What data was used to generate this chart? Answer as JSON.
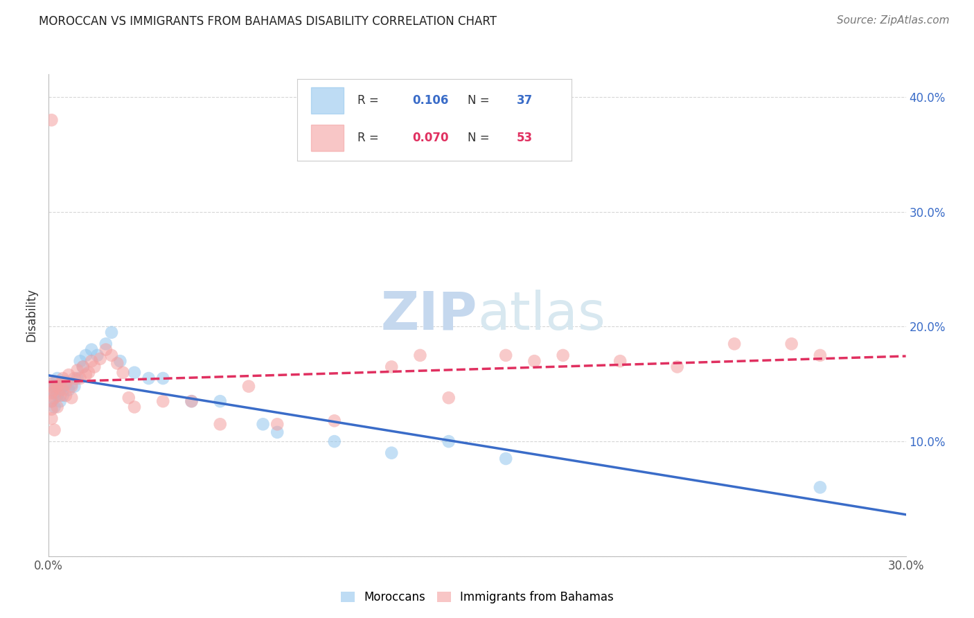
{
  "title": "MOROCCAN VS IMMIGRANTS FROM BAHAMAS DISABILITY CORRELATION CHART",
  "source": "Source: ZipAtlas.com",
  "ylabel": "Disability",
  "x_min": 0.0,
  "x_max": 0.3,
  "y_min": 0.0,
  "y_max": 0.42,
  "moroccans_color": "#93C6ED",
  "bahamas_color": "#F4A0A0",
  "trendline_moroccan_color": "#3A6CC8",
  "trendline_bahamas_color": "#E03060",
  "watermark_zip_color": "#C5D8EE",
  "watermark_atlas_color": "#C5D8EE",
  "moroccans_x": [
    0.001,
    0.001,
    0.001,
    0.002,
    0.002,
    0.002,
    0.003,
    0.003,
    0.004,
    0.004,
    0.005,
    0.005,
    0.006,
    0.007,
    0.008,
    0.009,
    0.01,
    0.011,
    0.012,
    0.013,
    0.015,
    0.017,
    0.02,
    0.022,
    0.025,
    0.03,
    0.035,
    0.04,
    0.05,
    0.06,
    0.075,
    0.08,
    0.1,
    0.12,
    0.14,
    0.16,
    0.27
  ],
  "moroccans_y": [
    0.15,
    0.145,
    0.135,
    0.148,
    0.142,
    0.13,
    0.14,
    0.155,
    0.145,
    0.135,
    0.148,
    0.14,
    0.152,
    0.145,
    0.15,
    0.148,
    0.155,
    0.17,
    0.165,
    0.175,
    0.18,
    0.175,
    0.185,
    0.195,
    0.17,
    0.16,
    0.155,
    0.155,
    0.135,
    0.135,
    0.115,
    0.108,
    0.1,
    0.09,
    0.1,
    0.085,
    0.06
  ],
  "bahamas_x": [
    0.001,
    0.001,
    0.001,
    0.001,
    0.001,
    0.002,
    0.002,
    0.002,
    0.002,
    0.003,
    0.003,
    0.004,
    0.004,
    0.005,
    0.005,
    0.006,
    0.006,
    0.007,
    0.008,
    0.008,
    0.009,
    0.01,
    0.011,
    0.012,
    0.013,
    0.014,
    0.015,
    0.016,
    0.018,
    0.02,
    0.022,
    0.024,
    0.026,
    0.028,
    0.03,
    0.04,
    0.05,
    0.06,
    0.07,
    0.08,
    0.1,
    0.12,
    0.13,
    0.14,
    0.16,
    0.17,
    0.18,
    0.2,
    0.22,
    0.24,
    0.26,
    0.27,
    0.001
  ],
  "bahamas_y": [
    0.148,
    0.142,
    0.135,
    0.128,
    0.12,
    0.152,
    0.145,
    0.138,
    0.11,
    0.148,
    0.13,
    0.15,
    0.14,
    0.155,
    0.145,
    0.15,
    0.14,
    0.158,
    0.148,
    0.138,
    0.155,
    0.162,
    0.155,
    0.165,
    0.158,
    0.16,
    0.17,
    0.165,
    0.172,
    0.18,
    0.175,
    0.168,
    0.16,
    0.138,
    0.13,
    0.135,
    0.135,
    0.115,
    0.148,
    0.115,
    0.118,
    0.165,
    0.175,
    0.138,
    0.175,
    0.17,
    0.175,
    0.17,
    0.165,
    0.185,
    0.185,
    0.175,
    0.38
  ]
}
